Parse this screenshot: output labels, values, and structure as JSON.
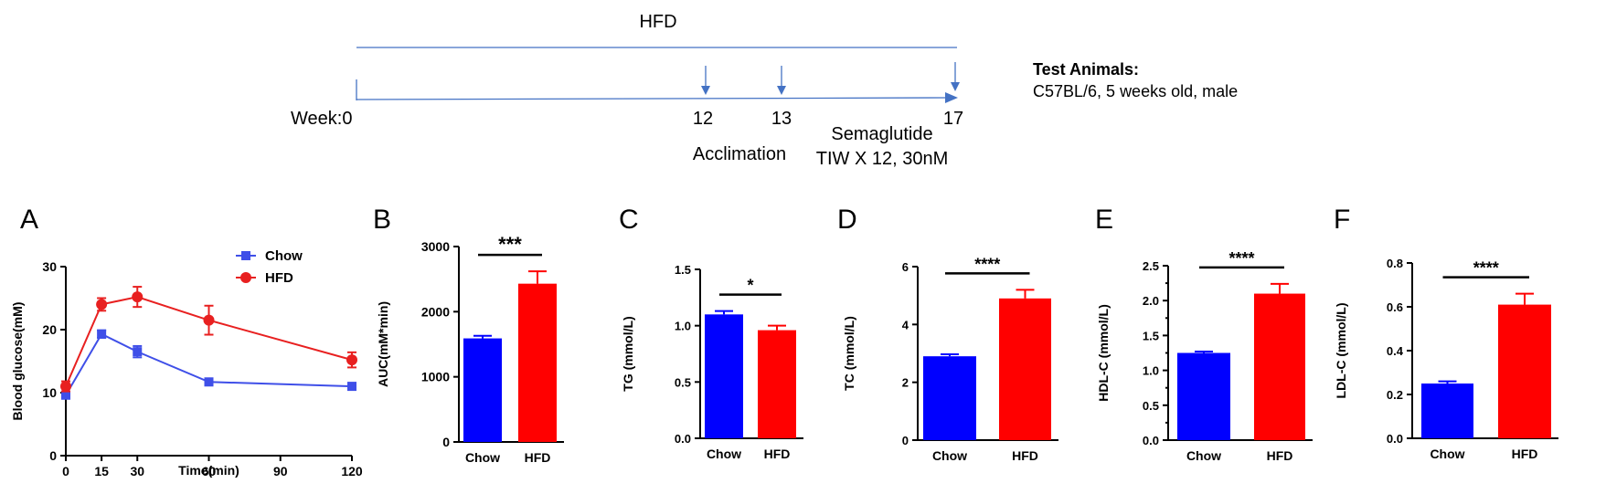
{
  "timeline": {
    "diet_label": "HFD",
    "week_label": "Week:0",
    "week_12": "12",
    "week_13": "13",
    "week_17": "17",
    "acclimation": "Acclimation",
    "treatment_line1": "Semaglutide",
    "treatment_line2": "TIW X 12, 30nM",
    "animals_title": "Test Animals:",
    "animals_desc": "C57BL/6, 5 weeks old, male",
    "arrow_color": "#4472c4"
  },
  "colors": {
    "chow": "#0000ff",
    "hfd": "#ff0000",
    "line_chow": "#3f4fe8",
    "line_hfd": "#e82020"
  },
  "chart_data": [
    {
      "panel": "A",
      "type": "line",
      "xlabel": "Time(min)",
      "ylabel": "Blood glucose(mM)",
      "x": [
        0,
        15,
        30,
        60,
        120
      ],
      "xticks": [
        "0",
        "15",
        "30",
        "60",
        "90",
        "120"
      ],
      "xtick_values": [
        0,
        15,
        30,
        60,
        90,
        120
      ],
      "yticks": [
        "0",
        "10",
        "20",
        "30"
      ],
      "ylim": [
        0,
        30
      ],
      "xlim": [
        0,
        120
      ],
      "legend": "top-right",
      "series": [
        {
          "name": "Chow",
          "values": [
            9.6,
            19.3,
            16.5,
            11.7,
            11.0
          ],
          "errors": [
            0.4,
            0.6,
            0.9,
            0.3,
            0.4
          ]
        },
        {
          "name": "HFD",
          "values": [
            11.0,
            24.0,
            25.2,
            21.5,
            15.2
          ],
          "errors": [
            0.8,
            1.0,
            1.6,
            2.3,
            1.2
          ]
        }
      ]
    },
    {
      "panel": "B",
      "type": "bar",
      "categories": [
        "Chow",
        "HFD"
      ],
      "values": [
        1590,
        2430
      ],
      "errors": [
        40,
        190
      ],
      "ylabel": "AUC(mM*min)",
      "yticks": [
        "0",
        "1000",
        "2000",
        "3000"
      ],
      "ylim": [
        0,
        3000
      ],
      "significance": "***"
    },
    {
      "panel": "C",
      "type": "bar",
      "categories": [
        "Chow",
        "HFD"
      ],
      "values": [
        1.1,
        0.96
      ],
      "errors": [
        0.03,
        0.04
      ],
      "ylabel": "TG (mmol/L)",
      "yticks": [
        "0.0",
        "0.5",
        "1.0",
        "1.5"
      ],
      "ylim": [
        0,
        1.5
      ],
      "significance": "*"
    },
    {
      "panel": "D",
      "type": "bar",
      "categories": [
        "Chow",
        "HFD"
      ],
      "values": [
        2.9,
        4.9
      ],
      "errors": [
        0.07,
        0.3
      ],
      "ylabel": "TC (mmol/L)",
      "yticks": [
        "0",
        "2",
        "4",
        "6"
      ],
      "ylim": [
        0,
        6
      ],
      "significance": "****"
    },
    {
      "panel": "E",
      "type": "bar",
      "categories": [
        "Chow",
        "HFD"
      ],
      "values": [
        1.25,
        2.1
      ],
      "errors": [
        0.02,
        0.14
      ],
      "ylabel": "HDL-C (mmol/L)",
      "yticks": [
        "0.0",
        "0.5",
        "1.0",
        "1.5",
        "2.0",
        "2.5"
      ],
      "ytick_values": [
        0,
        0.5,
        1.0,
        1.5,
        2.0,
        2.5
      ],
      "minor_tick_values": [
        0.25,
        0.75,
        1.25,
        1.75,
        2.25
      ],
      "ylim": [
        0,
        2.5
      ],
      "significance": "****"
    },
    {
      "panel": "F",
      "type": "bar",
      "categories": [
        "Chow",
        "HFD"
      ],
      "values": [
        0.25,
        0.61
      ],
      "errors": [
        0.01,
        0.05
      ],
      "ylabel": "LDL-C (mmol/L)",
      "yticks": [
        "0.0",
        "0.2",
        "0.4",
        "0.6",
        "0.8"
      ],
      "ylim": [
        0,
        0.8
      ],
      "significance": "****"
    }
  ]
}
